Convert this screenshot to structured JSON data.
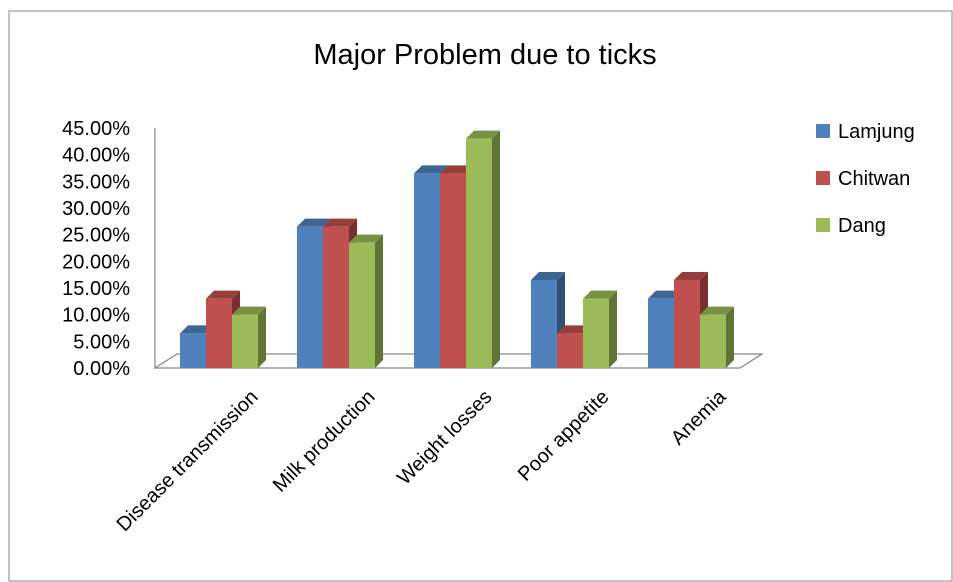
{
  "chart_data": {
    "type": "bar",
    "title": "Major Problem due to ticks",
    "xlabel": "",
    "ylabel": "",
    "categories": [
      "Disease transmission",
      "Milk production",
      "Weight losses",
      "Poor appetite",
      "Anemia"
    ],
    "series": [
      {
        "name": "Lamjung",
        "color": "#4F81BD",
        "values": [
          6.5,
          26.5,
          36.5,
          16.5,
          13.0
        ]
      },
      {
        "name": "Chitwan",
        "color": "#C0504D",
        "values": [
          13.0,
          26.5,
          36.5,
          6.5,
          16.5
        ]
      },
      {
        "name": "Dang",
        "color": "#9BBB59",
        "values": [
          10.0,
          23.5,
          43.0,
          13.0,
          10.0
        ]
      }
    ],
    "ylim": [
      0,
      45
    ],
    "yticks": [
      "0.00%",
      "5.00%",
      "10.00%",
      "15.00%",
      "20.00%",
      "25.00%",
      "30.00%",
      "35.00%",
      "40.00%",
      "45.00%"
    ],
    "legend_position": "right",
    "grid": false,
    "style": "3d-clustered-column"
  }
}
